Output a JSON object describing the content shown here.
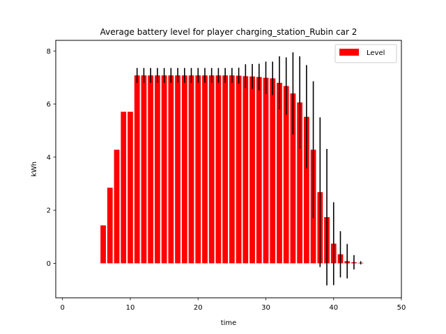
{
  "chart_data": {
    "type": "bar",
    "title": "Average battery level for player charging_station_Rubin car 2",
    "xlabel": "time",
    "ylabel": "kWh",
    "xlim": [
      -1,
      50
    ],
    "ylim": [
      -1.3,
      8.4
    ],
    "xticks": [
      0,
      10,
      20,
      30,
      40,
      50
    ],
    "yticks": [
      0,
      2,
      4,
      6,
      8
    ],
    "grid": false,
    "legend": {
      "position": "top-right"
    },
    "colors": {
      "bar": "#ff0000",
      "errorbar": "#000000"
    },
    "bar_width": 0.8,
    "series": [
      {
        "name": "Level",
        "x": [
          6,
          7,
          8,
          9,
          10,
          11,
          12,
          13,
          14,
          15,
          16,
          17,
          18,
          19,
          20,
          21,
          22,
          23,
          24,
          25,
          26,
          27,
          28,
          29,
          30,
          31,
          32,
          33,
          34,
          35,
          36,
          37,
          38,
          39,
          40,
          41,
          42,
          43,
          44
        ],
        "values": [
          1.43,
          2.85,
          4.28,
          5.71,
          5.71,
          7.08,
          7.08,
          7.08,
          7.08,
          7.08,
          7.08,
          7.08,
          7.08,
          7.08,
          7.08,
          7.08,
          7.08,
          7.08,
          7.08,
          7.08,
          7.07,
          7.05,
          7.04,
          7.02,
          6.99,
          6.97,
          6.8,
          6.68,
          6.4,
          6.06,
          5.52,
          4.28,
          2.68,
          1.74,
          0.74,
          0.34,
          0.08,
          0.04,
          0.02
        ],
        "errors": [
          0,
          0,
          0,
          0,
          0,
          0.28,
          0.28,
          0.28,
          0.28,
          0.28,
          0.28,
          0.28,
          0.28,
          0.28,
          0.28,
          0.28,
          0.28,
          0.28,
          0.28,
          0.28,
          0.3,
          0.45,
          0.47,
          0.5,
          0.61,
          0.63,
          1.0,
          1.08,
          1.55,
          1.74,
          1.95,
          2.58,
          2.82,
          2.57,
          1.56,
          0.87,
          0.65,
          0.27,
          0.06
        ]
      }
    ]
  }
}
